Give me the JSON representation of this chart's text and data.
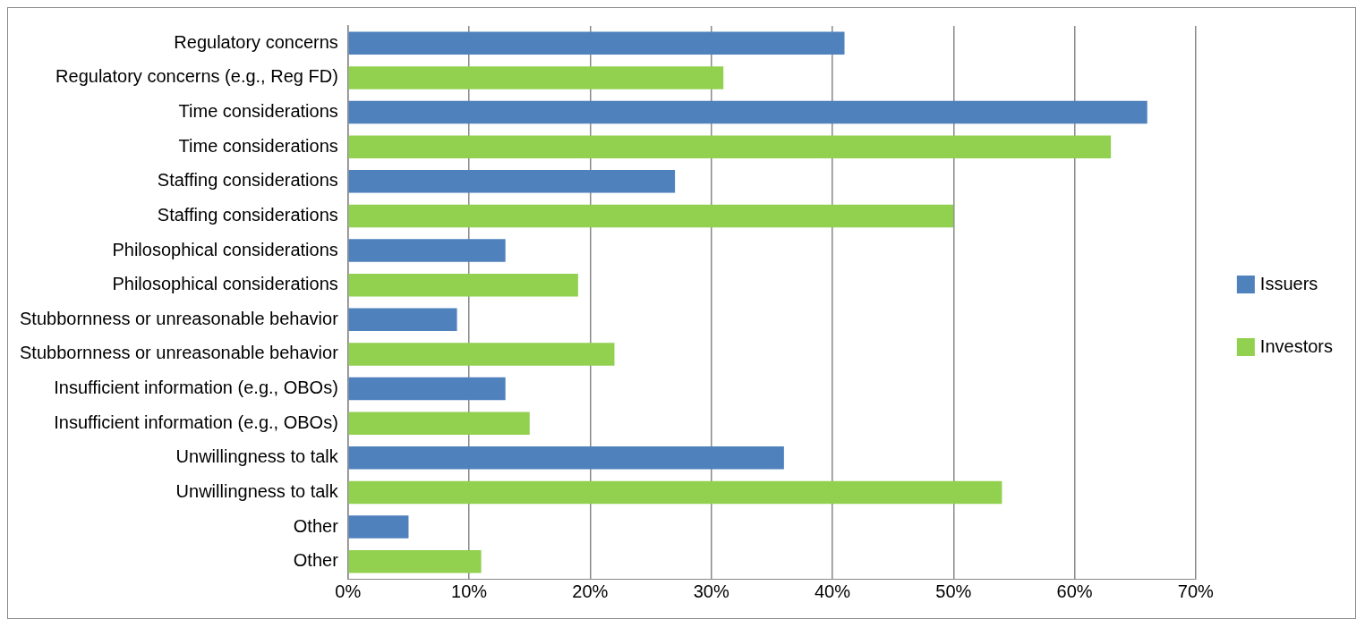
{
  "chart_data": {
    "type": "bar",
    "orientation": "horizontal",
    "categories": [
      "Regulatory concerns",
      "Regulatory concerns (e.g., Reg FD)",
      "Time considerations",
      "Time considerations",
      "Staffing considerations",
      "Staffing considerations",
      "Philosophical considerations",
      "Philosophical considerations",
      "Stubbornness or unreasonable behavior",
      "Stubbornness or unreasonable behavior",
      "Insufficient information (e.g., OBOs)",
      "Insufficient information (e.g., OBOs)",
      "Unwillingness to talk",
      "Unwillingness to talk",
      "Other",
      "Other"
    ],
    "series": [
      {
        "name": "Issuers",
        "color": "#4f81bd",
        "values": [
          41,
          null,
          66,
          null,
          27,
          null,
          13,
          null,
          9,
          null,
          13,
          null,
          36,
          null,
          5,
          null
        ]
      },
      {
        "name": "Investors",
        "color": "#92d050",
        "values": [
          null,
          31,
          null,
          63,
          null,
          50,
          null,
          19,
          null,
          22,
          null,
          15,
          null,
          54,
          null,
          11
        ]
      }
    ],
    "xlim": [
      0,
      70
    ],
    "xticks": [
      {
        "value": 0,
        "label": "0%"
      },
      {
        "value": 10,
        "label": "10%"
      },
      {
        "value": 20,
        "label": "20%"
      },
      {
        "value": 30,
        "label": "30%"
      },
      {
        "value": 40,
        "label": "40%"
      },
      {
        "value": 50,
        "label": "50%"
      },
      {
        "value": 60,
        "label": "60%"
      },
      {
        "value": 70,
        "label": "70%"
      }
    ],
    "grid": "x",
    "legend": "right"
  }
}
